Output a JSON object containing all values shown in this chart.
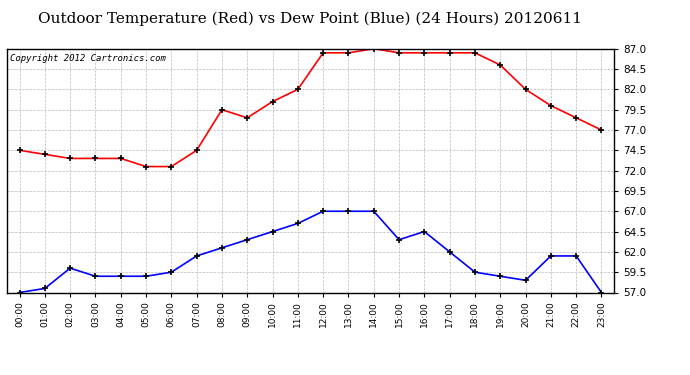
{
  "title": "Outdoor Temperature (Red) vs Dew Point (Blue) (24 Hours) 20120611",
  "copyright": "Copyright 2012 Cartronics.com",
  "hours": [
    "00:00",
    "01:00",
    "02:00",
    "03:00",
    "04:00",
    "05:00",
    "06:00",
    "07:00",
    "08:00",
    "09:00",
    "10:00",
    "11:00",
    "12:00",
    "13:00",
    "14:00",
    "15:00",
    "16:00",
    "17:00",
    "18:00",
    "19:00",
    "20:00",
    "21:00",
    "22:00",
    "23:00"
  ],
  "temp": [
    74.5,
    74.0,
    73.5,
    73.5,
    73.5,
    72.5,
    72.5,
    74.5,
    79.5,
    78.5,
    80.5,
    82.0,
    86.5,
    86.5,
    87.0,
    86.5,
    86.5,
    86.5,
    86.5,
    85.0,
    82.0,
    80.0,
    78.5,
    77.0
  ],
  "dew": [
    57.0,
    57.5,
    60.0,
    59.0,
    59.0,
    59.0,
    59.5,
    61.5,
    62.5,
    63.5,
    64.5,
    65.5,
    67.0,
    67.0,
    67.0,
    63.5,
    64.5,
    62.0,
    59.5,
    59.0,
    58.5,
    61.5,
    61.5,
    57.0
  ],
  "temp_color": "red",
  "dew_color": "blue",
  "background_color": "#ffffff",
  "plot_bg_color": "#ffffff",
  "grid_color": "#bbbbbb",
  "ylim": [
    57.0,
    87.0
  ],
  "yticks": [
    57.0,
    59.5,
    62.0,
    64.5,
    67.0,
    69.5,
    72.0,
    74.5,
    77.0,
    79.5,
    82.0,
    84.5,
    87.0
  ],
  "title_fontsize": 11,
  "copyright_fontsize": 6.5,
  "marker": "+",
  "marker_color": "black",
  "linewidth": 1.2,
  "markersize": 5,
  "tick_fontsize": 7.5,
  "xtick_fontsize": 6.5
}
